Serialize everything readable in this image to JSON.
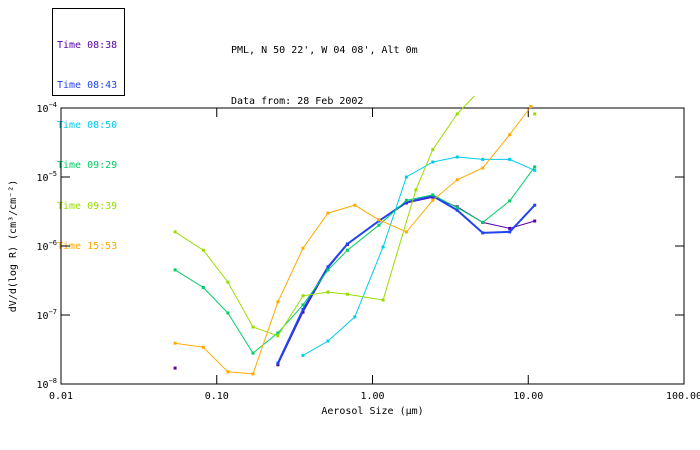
{
  "header": {
    "title_line1": "PML, N 50 22', W 04 08', Alt 0m",
    "title_line2": "Data from: 28 Feb 2002"
  },
  "legend": {
    "items": [
      {
        "label": "Time 08:38",
        "color": "#5500AA"
      },
      {
        "label": "Time 08:43",
        "color": "#2244EE"
      },
      {
        "label": "Time 08:50",
        "color": "#00CCEE"
      },
      {
        "label": "Time 09:29",
        "color": "#00CC66"
      },
      {
        "label": "Time 09:39",
        "color": "#99DD00"
      },
      {
        "label": "Time 15:53",
        "color": "#FFAA00"
      }
    ]
  },
  "chart_data": {
    "type": "line",
    "title": "PML, N 50 22', W 04 08', Alt 0m",
    "subtitle": "Data from: 28 Feb 2002",
    "xlabel": "Aerosol Size (μm)",
    "ylabel": "dV/d(log R) (cm³/cm⁻²)",
    "xscale": "log",
    "yscale": "log",
    "xlim": [
      0.01,
      100
    ],
    "ylim": [
      1e-08,
      0.0001
    ],
    "grid": false,
    "legend_position": "top-left",
    "marker": "square",
    "x_tick_values": [
      0.01,
      0.1,
      1,
      10,
      100
    ],
    "x_ticks": [
      "0.01",
      "0.10",
      "1.00",
      "10.00",
      "100.00"
    ],
    "y_tick_exponents": [
      -4,
      -5,
      -6,
      -7,
      -8
    ],
    "series": [
      {
        "name": "Time 08:38",
        "color": "#5500AA",
        "width": 1,
        "segments": [
          [
            [
              0.054,
              1.7e-08
            ]
          ],
          [
            [
              0.247,
              1.9e-08
            ],
            [
              0.358,
              1.1e-07
            ],
            [
              0.518,
              4.8e-07
            ],
            [
              0.69,
              1.05e-06
            ],
            [
              1.1,
              2.3e-06
            ],
            [
              1.65,
              4.2e-06
            ],
            [
              2.44,
              5.1e-06
            ],
            [
              3.5,
              3.7e-06
            ],
            [
              5.1,
              2.2e-06
            ],
            [
              7.6,
              1.8e-06
            ],
            [
              11,
              2.3e-06
            ]
          ]
        ]
      },
      {
        "name": "Time 08:43",
        "color": "#2244EE",
        "width": 2,
        "segments": [
          [
            [
              0.247,
              2e-08
            ],
            [
              0.358,
              1.2e-07
            ],
            [
              0.518,
              5e-07
            ],
            [
              0.69,
              1.07e-06
            ],
            [
              1.1,
              2.3e-06
            ],
            [
              1.65,
              4.3e-06
            ],
            [
              2.44,
              5.3e-06
            ],
            [
              3.5,
              3.3e-06
            ],
            [
              5.1,
              1.55e-06
            ],
            [
              7.6,
              1.6e-06
            ],
            [
              11,
              3.9e-06
            ]
          ]
        ]
      },
      {
        "name": "Time 08:50",
        "color": "#00CCEE",
        "width": 1,
        "segments": [
          [
            [
              0.358,
              2.6e-08
            ],
            [
              0.518,
              4.2e-08
            ],
            [
              0.77,
              9.4e-08
            ],
            [
              1.17,
              9.7e-07
            ],
            [
              1.65,
              1e-05
            ],
            [
              2.44,
              1.65e-05
            ],
            [
              3.5,
              1.95e-05
            ],
            [
              5.1,
              1.8e-05
            ],
            [
              7.6,
              1.8e-05
            ],
            [
              11,
              1.25e-05
            ]
          ]
        ]
      },
      {
        "name": "Time 09:29",
        "color": "#00CC66",
        "width": 1,
        "segments": [
          [
            [
              0.054,
              4.5e-07
            ],
            [
              0.082,
              2.5e-07
            ],
            [
              0.118,
              1.07e-07
            ],
            [
              0.171,
              2.8e-08
            ],
            [
              0.247,
              5.5e-08
            ],
            [
              0.358,
              1.4e-07
            ],
            [
              0.518,
              4.5e-07
            ],
            [
              0.69,
              8.7e-07
            ],
            [
              1.1,
              2e-06
            ],
            [
              1.65,
              4.6e-06
            ],
            [
              2.44,
              5.5e-06
            ],
            [
              3.5,
              3.6e-06
            ],
            [
              5.1,
              2.2e-06
            ],
            [
              7.6,
              4.5e-06
            ],
            [
              11,
              1.4e-05
            ]
          ]
        ]
      },
      {
        "name": "Time 09:39",
        "color": "#99DD00",
        "width": 1,
        "segments": [
          [
            [
              0.054,
              1.6e-06
            ],
            [
              0.082,
              8.7e-07
            ],
            [
              0.118,
              3e-07
            ],
            [
              0.171,
              6.7e-08
            ],
            [
              0.247,
              5e-08
            ],
            [
              0.358,
              1.9e-07
            ],
            [
              0.518,
              2.15e-07
            ],
            [
              0.69,
              2e-07
            ],
            [
              1.17,
              1.65e-07
            ],
            [
              1.9,
              6.5e-06
            ],
            [
              2.44,
              2.5e-05
            ],
            [
              3.5,
              8.2e-05
            ],
            [
              5.1,
              0.0002
            ]
          ],
          [
            [
              11,
              8.2e-05
            ]
          ]
        ]
      },
      {
        "name": "Time 15:53",
        "color": "#FFAA00",
        "width": 1,
        "segments": [
          [
            [
              0.054,
              3.9e-08
            ],
            [
              0.082,
              3.4e-08
            ],
            [
              0.118,
              1.5e-08
            ],
            [
              0.171,
              1.4e-08
            ],
            [
              0.247,
              1.55e-07
            ],
            [
              0.358,
              9.3e-07
            ],
            [
              0.518,
              3e-06
            ],
            [
              0.77,
              3.9e-06
            ],
            [
              1.1,
              2.4e-06
            ],
            [
              1.65,
              1.6e-06
            ],
            [
              2.44,
              4.6e-06
            ],
            [
              3.5,
              9.1e-06
            ],
            [
              5.1,
              1.35e-05
            ],
            [
              7.6,
              4.1e-05
            ],
            [
              10.4,
              0.000105
            ]
          ]
        ]
      }
    ]
  }
}
